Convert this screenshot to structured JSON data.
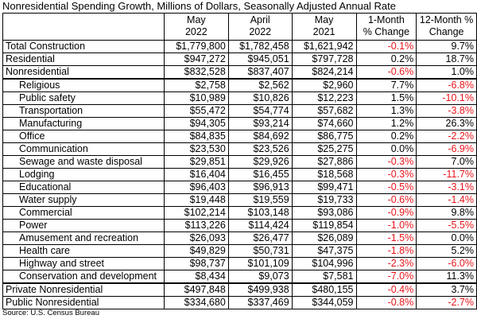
{
  "title": "Nonresidential Spending Growth, Millions of Dollars, Seasonally Adjusted Annual Rate",
  "headers": [
    "",
    "May\n2022",
    "April\n2022",
    "May\n2021",
    "1-Month\n% Change",
    "12-Month %\nChange"
  ],
  "rows": [
    {
      "label": "Total Construction",
      "sub": false,
      "may2022": "$1,779,800",
      "apr2022": "$1,782,458",
      "may2021": "$1,621,942",
      "m1": "-0.1%",
      "m12": "9.7%"
    },
    {
      "label": "Residential",
      "sub": false,
      "may2022": "$947,272",
      "apr2022": "$945,051",
      "may2021": "$797,728",
      "m1": "0.2%",
      "m12": "18.7%"
    },
    {
      "label": "Nonresidential",
      "sub": false,
      "may2022": "$832,528",
      "apr2022": "$837,407",
      "may2021": "$824,214",
      "m1": "-0.6%",
      "m12": "1.0%"
    },
    {
      "label": "Religious",
      "sub": true,
      "may2022": "$2,758",
      "apr2022": "$2,562",
      "may2021": "$2,960",
      "m1": "7.7%",
      "m12": "-6.8%"
    },
    {
      "label": "Public safety",
      "sub": true,
      "may2022": "$10,989",
      "apr2022": "$10,826",
      "may2021": "$12,223",
      "m1": "1.5%",
      "m12": "-10.1%"
    },
    {
      "label": "Transportation",
      "sub": true,
      "may2022": "$55,472",
      "apr2022": "$54,774",
      "may2021": "$57,682",
      "m1": "1.3%",
      "m12": "-3.8%"
    },
    {
      "label": "Manufacturing",
      "sub": true,
      "may2022": "$94,305",
      "apr2022": "$93,214",
      "may2021": "$74,660",
      "m1": "1.2%",
      "m12": "26.3%"
    },
    {
      "label": "Office",
      "sub": true,
      "may2022": "$84,835",
      "apr2022": "$84,692",
      "may2021": "$86,775",
      "m1": "0.2%",
      "m12": "-2.2%"
    },
    {
      "label": "Communication",
      "sub": true,
      "may2022": "$23,530",
      "apr2022": "$23,526",
      "may2021": "$25,275",
      "m1": "0.0%",
      "m12": "-6.9%"
    },
    {
      "label": "Sewage and waste disposal",
      "sub": true,
      "may2022": "$29,851",
      "apr2022": "$29,926",
      "may2021": "$27,886",
      "m1": "-0.3%",
      "m12": "7.0%"
    },
    {
      "label": "Lodging",
      "sub": true,
      "may2022": "$16,404",
      "apr2022": "$16,455",
      "may2021": "$18,568",
      "m1": "-0.3%",
      "m12": "-11.7%"
    },
    {
      "label": "Educational",
      "sub": true,
      "may2022": "$96,403",
      "apr2022": "$96,913",
      "may2021": "$99,471",
      "m1": "-0.5%",
      "m12": "-3.1%"
    },
    {
      "label": "Water supply",
      "sub": true,
      "may2022": "$19,448",
      "apr2022": "$19,559",
      "may2021": "$19,733",
      "m1": "-0.6%",
      "m12": "-1.4%"
    },
    {
      "label": "Commercial",
      "sub": true,
      "may2022": "$102,214",
      "apr2022": "$103,148",
      "may2021": "$93,086",
      "m1": "-0.9%",
      "m12": "9.8%"
    },
    {
      "label": "Power",
      "sub": true,
      "may2022": "$113,226",
      "apr2022": "$114,424",
      "may2021": "$119,854",
      "m1": "-1.0%",
      "m12": "-5.5%"
    },
    {
      "label": "Amusement and recreation",
      "sub": true,
      "may2022": "$26,093",
      "apr2022": "$26,477",
      "may2021": "$26,089",
      "m1": "-1.5%",
      "m12": "0.0%"
    },
    {
      "label": "Health care",
      "sub": true,
      "may2022": "$49,829",
      "apr2022": "$50,731",
      "may2021": "$47,375",
      "m1": "-1.8%",
      "m12": "5.2%"
    },
    {
      "label": "Highway and street",
      "sub": true,
      "may2022": "$98,737",
      "apr2022": "$101,109",
      "may2021": "$104,996",
      "m1": "-2.3%",
      "m12": "-6.0%"
    },
    {
      "label": "Conservation and development",
      "sub": true,
      "may2022": "$8,434",
      "apr2022": "$9,073",
      "may2021": "$7,581",
      "m1": "-7.0%",
      "m12": "11.3%"
    },
    {
      "label": "Private Nonresidential",
      "sub": false,
      "may2022": "$497,848",
      "apr2022": "$499,938",
      "may2021": "$480,155",
      "m1": "-0.4%",
      "m12": "3.7%"
    },
    {
      "label": "Public Nonresidential",
      "sub": false,
      "may2022": "$334,680",
      "apr2022": "$337,469",
      "may2021": "$344,059",
      "m1": "-0.8%",
      "m12": "-2.7%"
    }
  ],
  "source": "Source: U.S. Census Bureau",
  "colors": {
    "negative": "#e8161b",
    "text": "#000000",
    "border": "#000000"
  }
}
